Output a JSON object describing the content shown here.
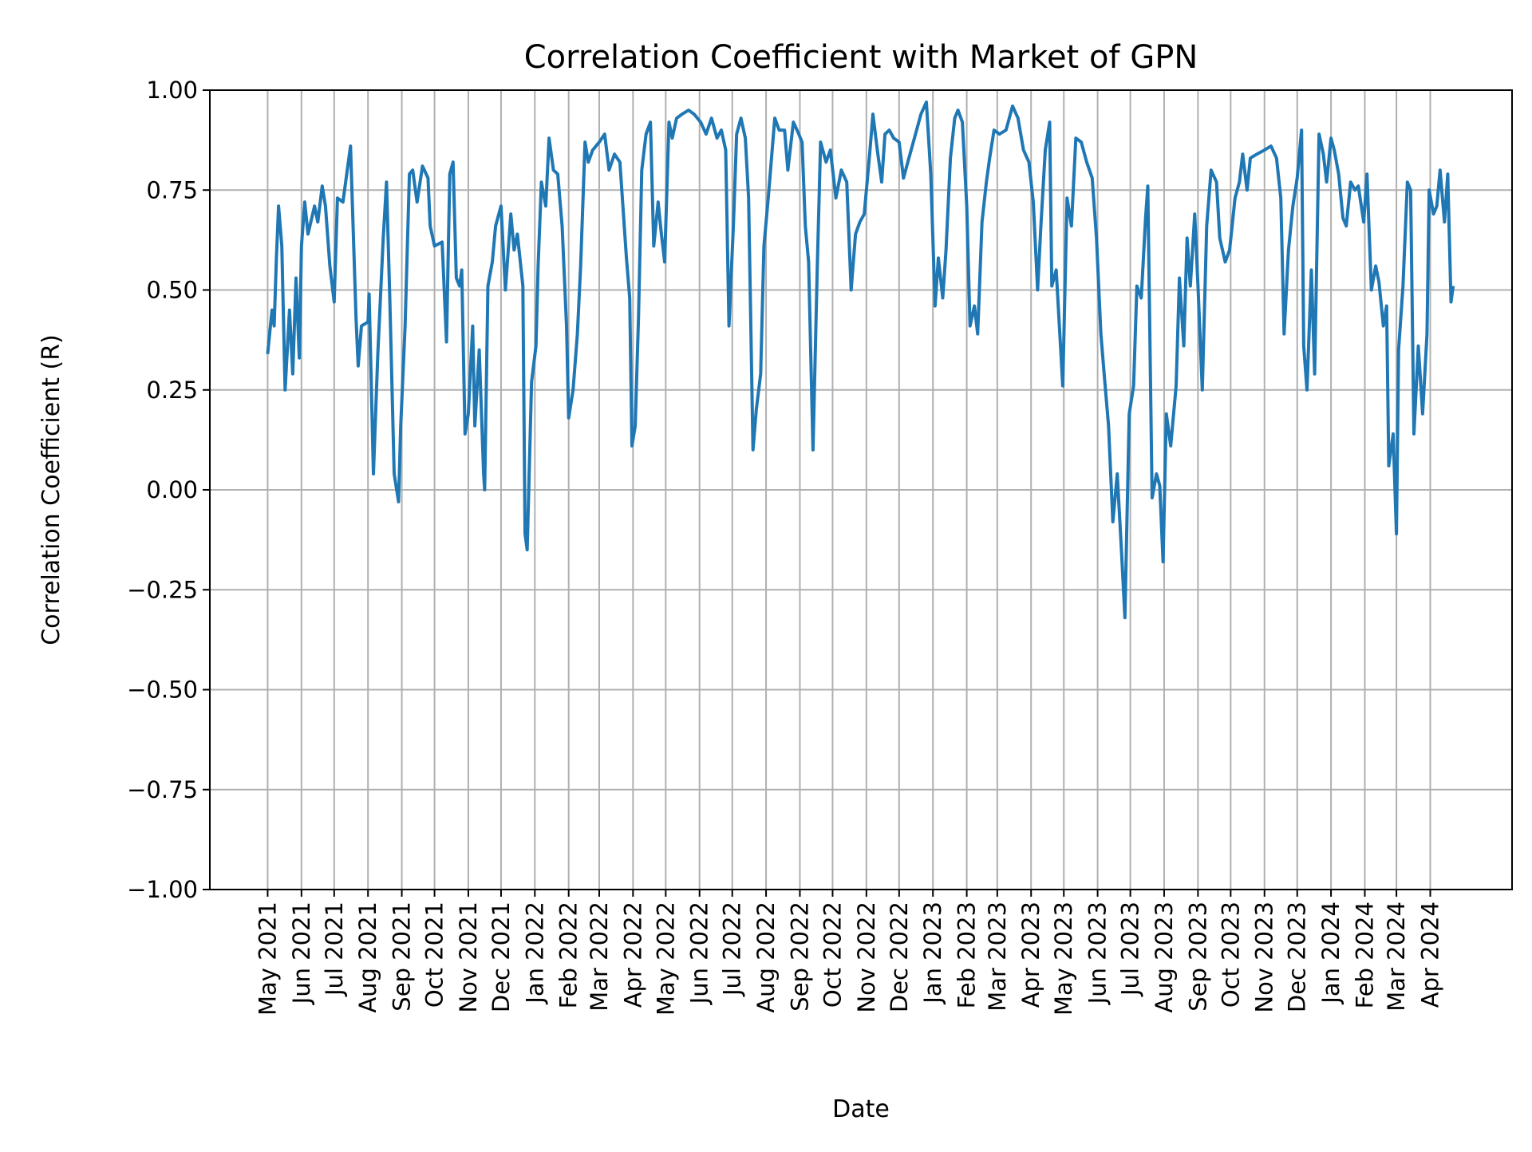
{
  "chart_data": {
    "type": "line",
    "title": "Correlation Coefficient with Market of GPN",
    "xlabel": "Date",
    "ylabel": "Correlation Coefficient (R)",
    "ylim": [
      -1.0,
      1.0
    ],
    "xlim": [
      "2021-03-09",
      "2024-06-15"
    ],
    "grid": true,
    "line_color": "#1f77b4",
    "yticks": [
      -1.0,
      -0.75,
      -0.5,
      -0.25,
      0.0,
      0.25,
      0.5,
      0.75,
      1.0
    ],
    "ytick_labels": [
      "−1.00",
      "−0.75",
      "−0.50",
      "−0.25",
      "0.00",
      "0.25",
      "0.50",
      "0.75",
      "1.00"
    ],
    "xticks": [
      "2021-05-01",
      "2021-06-01",
      "2021-07-01",
      "2021-08-01",
      "2021-09-01",
      "2021-10-01",
      "2021-11-01",
      "2021-12-01",
      "2022-01-01",
      "2022-02-01",
      "2022-03-01",
      "2022-04-01",
      "2022-05-01",
      "2022-06-01",
      "2022-07-01",
      "2022-08-01",
      "2022-09-01",
      "2022-10-01",
      "2022-11-01",
      "2022-12-01",
      "2023-01-01",
      "2023-02-01",
      "2023-03-01",
      "2023-04-01",
      "2023-05-01",
      "2023-06-01",
      "2023-07-01",
      "2023-08-01",
      "2023-09-01",
      "2023-10-01",
      "2023-11-01",
      "2023-12-01",
      "2024-01-01",
      "2024-02-01",
      "2024-03-01",
      "2024-04-01"
    ],
    "xtick_labels": [
      "May 2021",
      "Jun 2021",
      "Jul 2021",
      "Aug 2021",
      "Sep 2021",
      "Oct 2021",
      "Nov 2021",
      "Dec 2021",
      "Jan 2022",
      "Feb 2022",
      "Mar 2022",
      "Apr 2022",
      "May 2022",
      "Jun 2022",
      "Jul 2022",
      "Aug 2022",
      "Sep 2022",
      "Oct 2022",
      "Nov 2022",
      "Dec 2022",
      "Jan 2023",
      "Feb 2023",
      "Mar 2023",
      "Apr 2023",
      "May 2023",
      "Jun 2023",
      "Jul 2023",
      "Aug 2023",
      "Sep 2023",
      "Oct 2023",
      "Nov 2023",
      "Dec 2023",
      "Jan 2024",
      "Feb 2024",
      "Mar 2024",
      "Apr 2024"
    ],
    "x": [
      "2021-05-01",
      "2021-05-05",
      "2021-05-07",
      "2021-05-09",
      "2021-05-11",
      "2021-05-14",
      "2021-05-17",
      "2021-05-21",
      "2021-05-24",
      "2021-05-27",
      "2021-05-30",
      "2021-06-01",
      "2021-06-04",
      "2021-06-07",
      "2021-06-13",
      "2021-06-16",
      "2021-06-20",
      "2021-06-23",
      "2021-06-27",
      "2021-07-01",
      "2021-07-04",
      "2021-07-09",
      "2021-07-13",
      "2021-07-16",
      "2021-07-21",
      "2021-07-23",
      "2021-07-26",
      "2021-08-01",
      "2021-08-02",
      "2021-08-06",
      "2021-08-10",
      "2021-08-15",
      "2021-08-18",
      "2021-08-21",
      "2021-08-25",
      "2021-08-29",
      "2021-08-31",
      "2021-09-04",
      "2021-09-08",
      "2021-09-11",
      "2021-09-15",
      "2021-09-20",
      "2021-09-25",
      "2021-09-27",
      "2021-10-01",
      "2021-10-08",
      "2021-10-12",
      "2021-10-15",
      "2021-10-18",
      "2021-10-21",
      "2021-10-24",
      "2021-10-26",
      "2021-10-29",
      "2021-11-01",
      "2021-11-05",
      "2021-11-07",
      "2021-11-11",
      "2021-11-15",
      "2021-11-16",
      "2021-11-19",
      "2021-11-23",
      "2021-11-26",
      "2021-12-01",
      "2021-12-05",
      "2021-12-10",
      "2021-12-13",
      "2021-12-16",
      "2021-12-21",
      "2021-12-23",
      "2021-12-25",
      "2021-12-29",
      "2022-01-02",
      "2022-01-04",
      "2022-01-07",
      "2022-01-11",
      "2022-01-14",
      "2022-01-18",
      "2022-01-22",
      "2022-01-26",
      "2022-01-30",
      "2022-02-01",
      "2022-02-05",
      "2022-02-09",
      "2022-02-12",
      "2022-02-16",
      "2022-02-19",
      "2022-02-23",
      "2022-03-01",
      "2022-03-06",
      "2022-03-10",
      "2022-03-15",
      "2022-03-20",
      "2022-03-26",
      "2022-03-29",
      "2022-03-31",
      "2022-04-03",
      "2022-04-06",
      "2022-04-09",
      "2022-04-13",
      "2022-04-17",
      "2022-04-20",
      "2022-04-24",
      "2022-04-27",
      "2022-04-30",
      "2022-05-04",
      "2022-05-07",
      "2022-05-11",
      "2022-05-16",
      "2022-05-22",
      "2022-05-27",
      "2022-06-02",
      "2022-06-07",
      "2022-06-12",
      "2022-06-17",
      "2022-06-21",
      "2022-06-25",
      "2022-06-28",
      "2022-07-02",
      "2022-07-05",
      "2022-07-09",
      "2022-07-13",
      "2022-07-16",
      "2022-07-20",
      "2022-07-23",
      "2022-07-27",
      "2022-07-30",
      "2022-08-03",
      "2022-08-09",
      "2022-08-13",
      "2022-08-18",
      "2022-08-21",
      "2022-08-26",
      "2022-08-31",
      "2022-09-03",
      "2022-09-06",
      "2022-09-09",
      "2022-09-13",
      "2022-09-17",
      "2022-09-20",
      "2022-09-25",
      "2022-09-29",
      "2022-10-04",
      "2022-10-09",
      "2022-10-14",
      "2022-10-18",
      "2022-10-22",
      "2022-10-26",
      "2022-10-30",
      "2022-11-04",
      "2022-11-07",
      "2022-11-11",
      "2022-11-15",
      "2022-11-18",
      "2022-11-22",
      "2022-11-26",
      "2022-12-01",
      "2022-12-05",
      "2022-12-10",
      "2022-12-15",
      "2022-12-21",
      "2022-12-26",
      "2022-12-30",
      "2023-01-03",
      "2023-01-06",
      "2023-01-10",
      "2023-01-13",
      "2023-01-17",
      "2023-01-21",
      "2023-01-24",
      "2023-01-28",
      "2023-02-01",
      "2023-02-04",
      "2023-02-08",
      "2023-02-11",
      "2023-02-15",
      "2023-02-19",
      "2023-02-22",
      "2023-02-26",
      "2023-03-03",
      "2023-03-09",
      "2023-03-15",
      "2023-03-20",
      "2023-03-25",
      "2023-03-30",
      "2023-04-03",
      "2023-04-07",
      "2023-04-10",
      "2023-04-14",
      "2023-04-18",
      "2023-04-20",
      "2023-04-24",
      "2023-04-28",
      "2023-04-30",
      "2023-05-04",
      "2023-05-08",
      "2023-05-12",
      "2023-05-17",
      "2023-05-22",
      "2023-05-27",
      "2023-05-31",
      "2023-06-04",
      "2023-06-07",
      "2023-06-11",
      "2023-06-15",
      "2023-06-19",
      "2023-06-23",
      "2023-06-26",
      "2023-06-30",
      "2023-07-04",
      "2023-07-07",
      "2023-07-11",
      "2023-07-15",
      "2023-07-17",
      "2023-07-21",
      "2023-07-25",
      "2023-07-28",
      "2023-07-31",
      "2023-08-03",
      "2023-08-07",
      "2023-08-12",
      "2023-08-15",
      "2023-08-19",
      "2023-08-22",
      "2023-08-25",
      "2023-08-29",
      "2023-09-01",
      "2023-09-05",
      "2023-09-09",
      "2023-09-13",
      "2023-09-18",
      "2023-09-21",
      "2023-09-26",
      "2023-09-30",
      "2023-10-05",
      "2023-10-09",
      "2023-10-12",
      "2023-10-16",
      "2023-10-19",
      "2023-10-25",
      "2023-11-01",
      "2023-11-07",
      "2023-11-12",
      "2023-11-16",
      "2023-11-19",
      "2023-11-23",
      "2023-11-27",
      "2023-12-01",
      "2023-12-05",
      "2023-12-07",
      "2023-12-10",
      "2023-12-14",
      "2023-12-17",
      "2023-12-21",
      "2023-12-25",
      "2023-12-28",
      "2024-01-01",
      "2024-01-04",
      "2024-01-08",
      "2024-01-12",
      "2024-01-15",
      "2024-01-19",
      "2024-01-23",
      "2024-01-26",
      "2024-01-31",
      "2024-02-03",
      "2024-02-07",
      "2024-02-11",
      "2024-02-14",
      "2024-02-18",
      "2024-02-21",
      "2024-02-23",
      "2024-02-27",
      "2024-03-01",
      "2024-03-03",
      "2024-03-07",
      "2024-03-11",
      "2024-03-14",
      "2024-03-17",
      "2024-03-21",
      "2024-03-25",
      "2024-03-29",
      "2024-03-31",
      "2024-04-04",
      "2024-04-07",
      "2024-04-10",
      "2024-04-14",
      "2024-04-17",
      "2024-04-20",
      "2024-04-22"
    ],
    "y": [
      0.34,
      0.45,
      0.41,
      0.58,
      0.71,
      0.61,
      0.25,
      0.45,
      0.29,
      0.53,
      0.33,
      0.61,
      0.72,
      0.64,
      0.71,
      0.67,
      0.76,
      0.71,
      0.56,
      0.47,
      0.73,
      0.72,
      0.8,
      0.86,
      0.43,
      0.31,
      0.41,
      0.42,
      0.49,
      0.04,
      0.34,
      0.63,
      0.77,
      0.48,
      0.04,
      -0.03,
      0.16,
      0.41,
      0.79,
      0.8,
      0.72,
      0.81,
      0.78,
      0.66,
      0.61,
      0.62,
      0.37,
      0.79,
      0.82,
      0.53,
      0.51,
      0.55,
      0.14,
      0.19,
      0.41,
      0.16,
      0.35,
      0.04,
      0.0,
      0.51,
      0.57,
      0.66,
      0.71,
      0.5,
      0.69,
      0.6,
      0.64,
      0.51,
      -0.11,
      -0.15,
      0.27,
      0.36,
      0.56,
      0.77,
      0.71,
      0.88,
      0.8,
      0.79,
      0.66,
      0.41,
      0.18,
      0.25,
      0.39,
      0.56,
      0.87,
      0.82,
      0.85,
      0.87,
      0.89,
      0.8,
      0.84,
      0.82,
      0.58,
      0.48,
      0.11,
      0.16,
      0.43,
      0.8,
      0.89,
      0.92,
      0.61,
      0.72,
      0.64,
      0.57,
      0.92,
      0.88,
      0.93,
      0.94,
      0.95,
      0.94,
      0.92,
      0.89,
      0.93,
      0.88,
      0.9,
      0.85,
      0.41,
      0.66,
      0.89,
      0.93,
      0.88,
      0.73,
      0.1,
      0.2,
      0.29,
      0.61,
      0.73,
      0.93,
      0.9,
      0.9,
      0.8,
      0.92,
      0.89,
      0.87,
      0.66,
      0.57,
      0.1,
      0.56,
      0.87,
      0.82,
      0.85,
      0.73,
      0.8,
      0.77,
      0.5,
      0.64,
      0.67,
      0.69,
      0.84,
      0.94,
      0.85,
      0.77,
      0.89,
      0.9,
      0.88,
      0.87,
      0.78,
      0.83,
      0.88,
      0.94,
      0.97,
      0.79,
      0.46,
      0.58,
      0.48,
      0.6,
      0.83,
      0.93,
      0.95,
      0.92,
      0.71,
      0.41,
      0.46,
      0.39,
      0.67,
      0.77,
      0.83,
      0.9,
      0.89,
      0.9,
      0.96,
      0.93,
      0.85,
      0.82,
      0.72,
      0.5,
      0.66,
      0.85,
      0.92,
      0.51,
      0.55,
      0.36,
      0.26,
      0.73,
      0.66,
      0.88,
      0.87,
      0.82,
      0.78,
      0.63,
      0.39,
      0.29,
      0.16,
      -0.08,
      0.04,
      -0.16,
      -0.32,
      0.19,
      0.26,
      0.51,
      0.48,
      0.68,
      0.76,
      -0.02,
      0.04,
      0.01,
      -0.18,
      0.19,
      0.11,
      0.26,
      0.53,
      0.36,
      0.63,
      0.51,
      0.69,
      0.51,
      0.25,
      0.66,
      0.8,
      0.77,
      0.63,
      0.57,
      0.6,
      0.73,
      0.77,
      0.84,
      0.75,
      0.83,
      0.84,
      0.85,
      0.86,
      0.83,
      0.73,
      0.39,
      0.6,
      0.71,
      0.78,
      0.9,
      0.36,
      0.25,
      0.55,
      0.29,
      0.89,
      0.84,
      0.77,
      0.88,
      0.85,
      0.79,
      0.68,
      0.66,
      0.77,
      0.75,
      0.76,
      0.67,
      0.79,
      0.5,
      0.56,
      0.52,
      0.41,
      0.46,
      0.06,
      0.14,
      -0.11,
      0.35,
      0.51,
      0.77,
      0.75,
      0.14,
      0.36,
      0.19,
      0.39,
      0.75,
      0.69,
      0.71,
      0.8,
      0.67,
      0.79,
      0.47,
      0.51
    ]
  }
}
